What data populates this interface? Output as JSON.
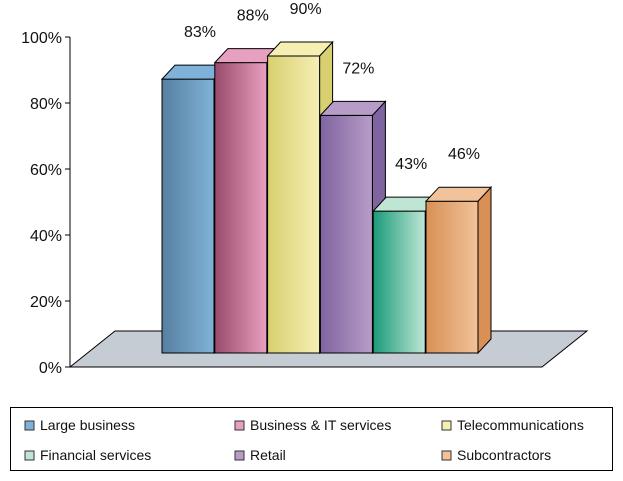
{
  "chart_data": {
    "type": "bar",
    "categories": [
      "Large business",
      "Business & IT services",
      "Telecommunications",
      "Financial services",
      "Retail",
      "Subcontractors"
    ],
    "values": [
      83,
      88,
      90,
      43,
      72,
      46
    ],
    "bar_order": [
      0,
      1,
      2,
      4,
      3,
      5
    ],
    "data_labels": [
      "83%",
      "88%",
      "90%",
      "43%",
      "72%",
      "46%"
    ],
    "ylim": [
      0,
      100
    ],
    "yticks": [
      0,
      20,
      40,
      60,
      80,
      100
    ],
    "ytick_labels": [
      "0%",
      "20%",
      "40%",
      "60%",
      "80%",
      "100%"
    ],
    "colors": [
      "#7fb2d8",
      "#e8a0c0",
      "#f6efb4",
      "#bfe6d4",
      "#b89cc8",
      "#f2c29a"
    ],
    "colors_dark": [
      "#567fa0",
      "#9a4a6a",
      "#d8cf70",
      "#1a9a7a",
      "#7f64a0",
      "#d89055"
    ],
    "floor_color": "#c6ccd4",
    "style": "3d",
    "grid": false,
    "legend_position": "bottom"
  }
}
